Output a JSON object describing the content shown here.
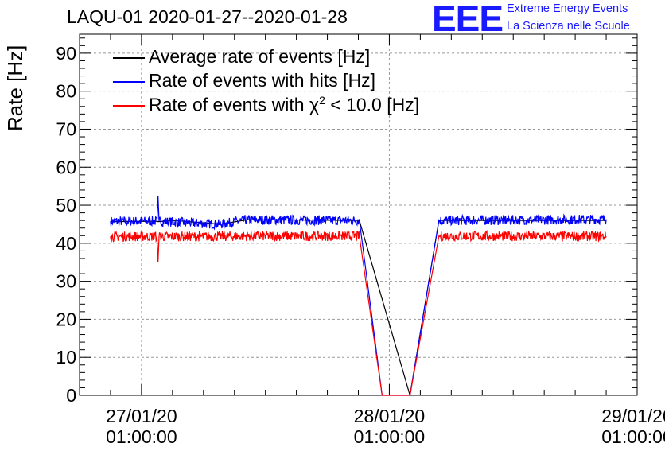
{
  "title": "LAQU-01 2020-01-27--2020-01-28",
  "logo": {
    "mark": "EEE",
    "line1": "Extreme Energy Events",
    "line2": "La Scienza nelle Scuole",
    "color": "#1a1aff"
  },
  "chart_data": {
    "type": "line",
    "title": "LAQU-01 2020-01-27--2020-01-28",
    "ylabel": "Rate [Hz]",
    "xlabel": "",
    "ylim": [
      0,
      95
    ],
    "xlim_hours": [
      -6,
      48
    ],
    "y_ticks": [
      0,
      10,
      20,
      30,
      40,
      50,
      60,
      70,
      80,
      90
    ],
    "x_ticks": [
      {
        "hour": 0,
        "date": "27/01/20",
        "time": "01:00:00"
      },
      {
        "hour": 24,
        "date": "28/01/20",
        "time": "01:00:00"
      },
      {
        "hour": 48,
        "date": "29/01/20",
        "time": "01:00:00"
      }
    ],
    "grid": true,
    "legend_position": "top-left",
    "series": [
      {
        "name": "Average rate of events [Hz]",
        "color": "#000000",
        "x_hours": [
          -3,
          1.5,
          1.6,
          3.3,
          7.6,
          10.3,
          21.1,
          26.0,
          28.8,
          45.0
        ],
        "y": [
          45.7,
          45.8,
          45.7,
          46.0,
          45.0,
          46.2,
          46.0,
          0,
          46.0,
          46.0
        ]
      },
      {
        "name": "Rate of events with hits [Hz]",
        "color": "#0000ff",
        "x_hours": [
          -3,
          1.5,
          1.6,
          1.7,
          7.6,
          10.3,
          21.1,
          23.3,
          26.0,
          28.8,
          45.0
        ],
        "y": [
          45.8,
          45.8,
          52.5,
          45.8,
          45.0,
          46.2,
          46.0,
          0,
          0,
          46.0,
          46.3
        ],
        "noise": 1.3
      },
      {
        "name": "Rate of events with χ² < 10.0 [Hz]",
        "color": "#ff0000",
        "x_hours": [
          -3,
          1.5,
          1.6,
          1.7,
          7.6,
          10.3,
          21.1,
          23.3,
          26.0,
          28.8,
          45.0
        ],
        "y": [
          41.8,
          41.8,
          35.0,
          41.8,
          41.8,
          41.9,
          41.9,
          0,
          0,
          41.9,
          41.8
        ],
        "noise": 1.3
      }
    ]
  },
  "legend": [
    {
      "label_pre": "Rate of events with ",
      "sym": "χ",
      "sup": "2",
      "post": " < 10.0 [Hz]"
    }
  ]
}
